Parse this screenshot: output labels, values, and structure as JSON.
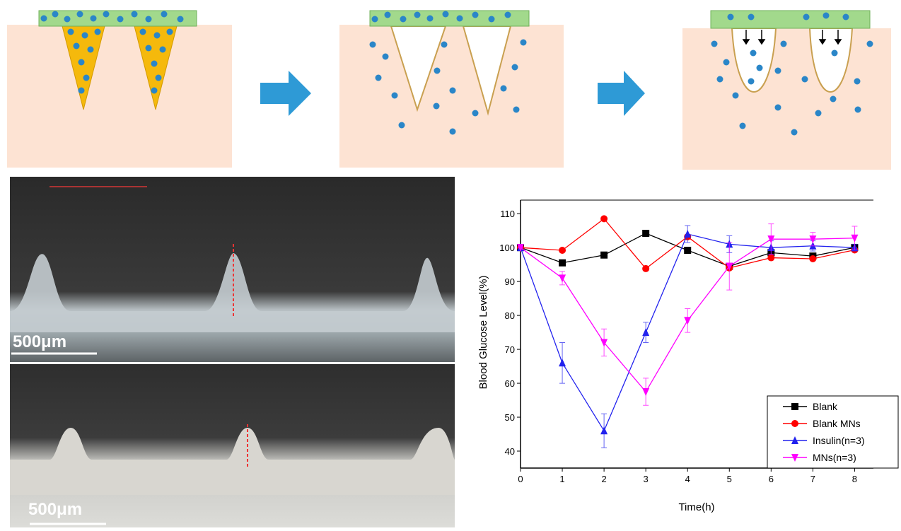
{
  "chart_data": {
    "type": "line",
    "x_label": "Time(h)",
    "y_label": "Blood  Glucose Level(%)",
    "x": [
      0,
      1,
      2,
      3,
      4,
      5,
      6,
      7,
      8
    ],
    "xlim": [
      0,
      8.45
    ],
    "xticks": [
      0,
      1,
      2,
      3,
      4,
      5,
      6,
      7,
      8
    ],
    "ylim": [
      35,
      114
    ],
    "yticks": [
      40,
      50,
      60,
      70,
      80,
      90,
      100,
      110
    ],
    "legend": "bottom-right",
    "series": [
      {
        "name": "Blank",
        "color": "#000000",
        "marker": "square",
        "values": [
          100,
          95.5,
          97.8,
          104.2,
          99.2,
          94.5,
          98.5,
          97.5,
          100
        ]
      },
      {
        "name": "Blank MNs",
        "color": "#ff0000",
        "marker": "circle",
        "values": [
          100,
          99.2,
          108.5,
          93.8,
          103.2,
          94,
          97,
          96.7,
          99.3
        ]
      },
      {
        "name": "Insulin(n=3)",
        "color": "#2222ee",
        "marker": "triangle-up",
        "values": [
          100,
          66,
          46,
          75,
          104,
          101,
          100,
          100.5,
          100
        ],
        "errors": [
          0,
          6,
          5,
          3,
          2.5,
          2.5,
          2,
          1.5,
          1
        ]
      },
      {
        "name": "MNs(n=3)",
        "color": "#ff00ff",
        "marker": "triangle-down",
        "values": [
          100,
          91,
          72,
          57.5,
          78.5,
          94.5,
          102.5,
          102.5,
          102.8
        ],
        "errors": [
          0,
          2,
          4,
          4,
          3.5,
          7,
          4.5,
          2,
          3.5
        ]
      }
    ]
  },
  "photos": [
    {
      "scale_label": "500μm"
    },
    {
      "scale_label": "500μm"
    }
  ]
}
